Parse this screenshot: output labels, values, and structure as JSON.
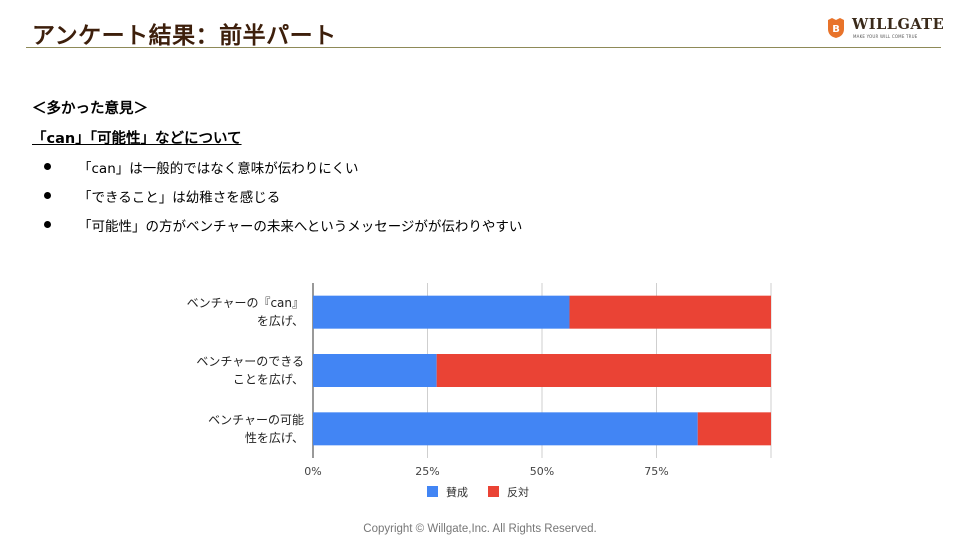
{
  "slide": {
    "title": "アンケート結果：前半パート",
    "heading": "＜多かった意見＞",
    "subheading": "「can」「可能性」などについて",
    "bullets": [
      "「can」は一般的ではなく意味が伝わりにくい",
      "「できること」は幼稚さを感じる",
      "「可能性」の方がベンチャーの未来へというメッセージがが伝わりやすい"
    ],
    "footer": "Copyright ©  Willgate,Inc. All Rights Reserved."
  },
  "logo": {
    "letter": "B",
    "wordmark": "WILLGATE",
    "tagline": "MAKE YOUR WILL COME TRUE"
  },
  "colors": {
    "title": "#3d1f0b",
    "rule": "#8e8a58",
    "logo": "#e8732a",
    "approve": "#4285f4",
    "oppose": "#ea4335"
  },
  "chart_data": {
    "type": "bar",
    "orientation": "horizontal",
    "stacked": true,
    "categories": [
      [
        "ベンチャーの『can』",
        "を広げ、"
      ],
      [
        "ベンチャーのできる",
        "ことを広げ、"
      ],
      [
        "ベンチャーの可能",
        "性を広げ、"
      ]
    ],
    "series": [
      {
        "name": "賛成",
        "color": "#4285f4",
        "values": [
          0.56,
          0.27,
          0.84
        ]
      },
      {
        "name": "反対",
        "color": "#ea4335",
        "values": [
          0.44,
          0.73,
          0.16
        ]
      }
    ],
    "xticks": [
      "0%",
      "25%",
      "50%",
      "75%"
    ],
    "xlim": [
      0,
      1
    ],
    "grid": true,
    "legend": "bottom"
  }
}
